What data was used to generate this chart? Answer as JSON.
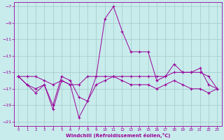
{
  "background_color": "#c8ecec",
  "grid_color": "#a0c8c8",
  "line_color": "#990099",
  "marker_color": "#990099",
  "xlabel": "Windchill (Refroidissement éolien,°C)",
  "xlabel_color": "#990099",
  "tick_color": "#990099",
  "ylim": [
    -21.5,
    -6.5
  ],
  "xlim": [
    -0.5,
    23.5
  ],
  "yticks": [
    -7,
    -9,
    -11,
    -13,
    -15,
    -17,
    -19,
    -21
  ],
  "xticks": [
    0,
    1,
    2,
    3,
    4,
    5,
    6,
    7,
    8,
    9,
    10,
    11,
    12,
    13,
    14,
    15,
    16,
    17,
    18,
    19,
    20,
    21,
    22,
    23
  ],
  "series1_x": [
    0,
    1,
    2,
    3,
    4,
    5,
    6,
    7,
    8,
    9,
    10,
    11,
    12,
    13,
    14,
    15,
    16,
    17,
    18,
    19,
    20,
    21,
    22,
    23
  ],
  "series1_y": [
    -15.5,
    -15.5,
    -15.5,
    -16.0,
    -16.5,
    -16.0,
    -16.5,
    -16.5,
    -15.5,
    -15.5,
    -15.5,
    -15.5,
    -15.5,
    -15.5,
    -15.5,
    -15.5,
    -15.5,
    -15.5,
    -15.0,
    -15.0,
    -15.0,
    -15.0,
    -15.5,
    -17.0
  ],
  "series2_x": [
    0,
    1,
    2,
    3,
    4,
    5,
    6,
    7,
    8,
    9,
    10,
    11,
    12,
    13,
    14,
    15,
    16,
    17,
    18,
    19,
    20,
    21,
    22,
    23
  ],
  "series2_y": [
    -15.5,
    -16.5,
    -17.0,
    -16.5,
    -19.5,
    -16.0,
    -16.5,
    -20.5,
    -18.5,
    -15.5,
    -8.5,
    -7.0,
    -10.0,
    -12.5,
    -12.5,
    -12.5,
    -16.0,
    -15.5,
    -14.0,
    -15.0,
    -15.0,
    -14.5,
    -16.5,
    -17.0
  ],
  "series3_x": [
    0,
    1,
    2,
    3,
    4,
    5,
    6,
    7,
    8,
    9,
    10,
    11,
    12,
    13,
    14,
    15,
    16,
    17,
    18,
    19,
    20,
    21,
    22,
    23
  ],
  "series3_y": [
    -15.5,
    -16.5,
    -17.5,
    -16.5,
    -19.0,
    -15.5,
    -16.0,
    -18.0,
    -18.5,
    -16.5,
    -16.0,
    -15.5,
    -16.0,
    -16.5,
    -16.5,
    -16.5,
    -17.0,
    -16.5,
    -16.0,
    -16.5,
    -17.0,
    -17.0,
    -17.5,
    -17.0
  ],
  "xlabel_fontsize": 5.0,
  "xtick_fontsize": 4.0,
  "ytick_fontsize": 4.5,
  "linewidth": 0.7,
  "markersize": 2.5
}
